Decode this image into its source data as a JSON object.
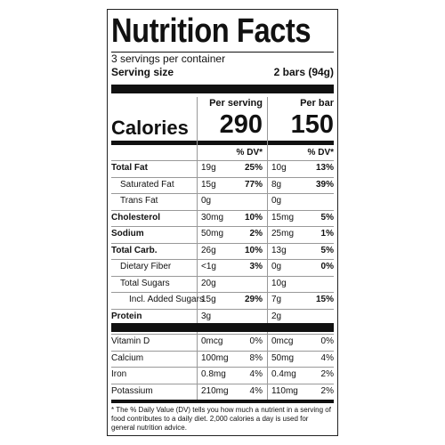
{
  "header": {
    "title": "Nutrition Facts",
    "servings": "3 servings per container",
    "serving_size_label": "Serving size",
    "serving_size_value": "2 bars (94g)"
  },
  "columns": {
    "per_serving": "Per serving",
    "per_bar": "Per bar"
  },
  "calories": {
    "label": "Calories",
    "per_serving": "290",
    "per_bar": "150"
  },
  "dv_headers": [
    "% DV*",
    "% DV*"
  ],
  "nutrients": [
    {
      "name": "Total Fat",
      "amount_serving": "19g",
      "dv_serving": "25%",
      "amount_bar": "10g",
      "dv_bar": "13%"
    },
    {
      "name": "Saturated Fat",
      "amount_serving": "15g",
      "dv_serving": "77%",
      "amount_bar": "8g",
      "dv_bar": "39%"
    },
    {
      "name": "Trans Fat",
      "amount_serving": "0g",
      "amount_bar": "0g"
    },
    {
      "name": "Cholesterol",
      "amount_serving": "30mg",
      "dv_serving": "10%",
      "amount_bar": "15mg",
      "dv_bar": "5%"
    },
    {
      "name": "Sodium",
      "amount_serving": "50mg",
      "dv_serving": "2%",
      "amount_bar": "25mg",
      "dv_bar": "1%"
    },
    {
      "name": "Total Carb.",
      "amount_serving": "26g",
      "dv_serving": "10%",
      "amount_bar": "13g",
      "dv_bar": "5%"
    },
    {
      "name": "Dietary Fiber",
      "amount_serving": "<1g",
      "dv_serving": "3%",
      "amount_bar": "0g",
      "dv_bar": "0%"
    },
    {
      "name": "Total Sugars",
      "amount_serving": "20g",
      "amount_bar": "10g"
    },
    {
      "name": "Incl. Added Sugars",
      "amount_serving": "15g",
      "dv_serving": "29%",
      "amount_bar": "7g",
      "dv_bar": "15%"
    },
    {
      "name": "Protein",
      "amount_serving": "3g",
      "amount_bar": "2g"
    }
  ],
  "vitamins": [
    {
      "name": "Vitamin D",
      "amount_serving": "0mcg",
      "dv_serving": "0%",
      "amount_bar": "0mcg",
      "dv_bar": "0%"
    },
    {
      "name": "Calcium",
      "amount_serving": "100mg",
      "dv_serving": "8%",
      "amount_bar": "50mg",
      "dv_bar": "4%"
    },
    {
      "name": "Iron",
      "amount_serving": "0.8mg",
      "dv_serving": "4%",
      "amount_bar": "0.4mg",
      "dv_bar": "2%"
    },
    {
      "name": "Potassium",
      "amount_serving": "210mg",
      "dv_serving": "4%",
      "amount_bar": "110mg",
      "dv_bar": "2%"
    }
  ],
  "footnote": "* The % Daily Value (DV) tells you how much a nutrient in a serving of food contributes to a daily diet. 2,000 calories a day is used for general nutrition advice."
}
